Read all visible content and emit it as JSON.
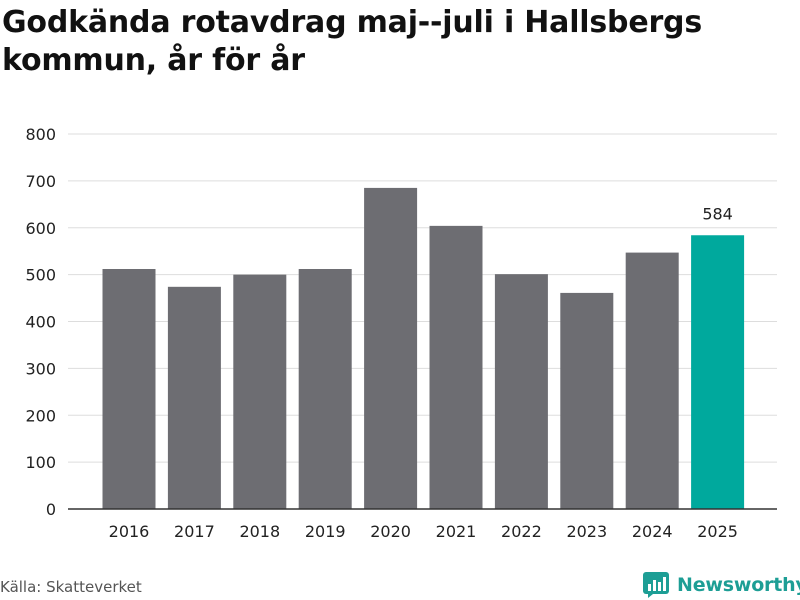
{
  "title": "Godkända rotavdrag maj--juli i Hallsbergs kommun, år för år",
  "source": "Källa: Skatteverket",
  "brand": {
    "name": "Newsworthy",
    "icon": "newsworthy-logo-icon"
  },
  "colors": {
    "bar": "#6d6d72",
    "highlight": "#00a99d",
    "grid": "#dddddd",
    "axis": "#333333",
    "brand": "#1d9e95"
  },
  "chart_data": {
    "type": "bar",
    "categories": [
      "2016",
      "2017",
      "2018",
      "2019",
      "2020",
      "2021",
      "2022",
      "2023",
      "2024",
      "2025"
    ],
    "values": [
      512,
      474,
      500,
      512,
      685,
      604,
      501,
      461,
      547,
      584
    ],
    "highlight_index": 9,
    "highlight_label": "584",
    "ylim": [
      0,
      800
    ],
    "yticks": [
      0,
      100,
      200,
      300,
      400,
      500,
      600,
      700,
      800
    ],
    "grid": true,
    "xlabel": "",
    "ylabel": ""
  }
}
